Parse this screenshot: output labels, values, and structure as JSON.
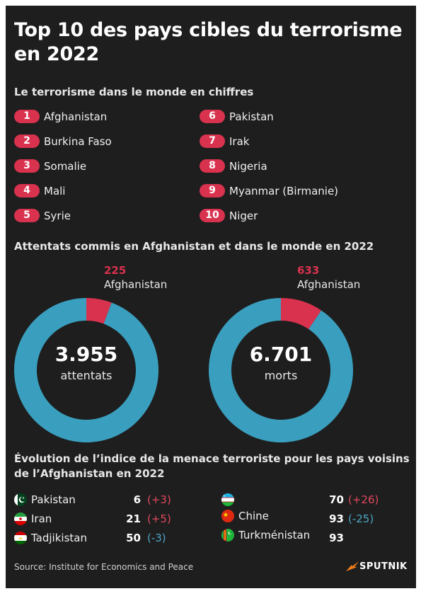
{
  "title": "Top 10 des pays cibles du terrorisme en 2022",
  "section1": "Le terrorisme dans le monde en chiffres",
  "ranking": [
    {
      "rank": "1",
      "country": "Afghanistan"
    },
    {
      "rank": "2",
      "country": "Burkina Faso"
    },
    {
      "rank": "3",
      "country": "Somalie"
    },
    {
      "rank": "4",
      "country": "Mali"
    },
    {
      "rank": "5",
      "country": "Syrie"
    },
    {
      "rank": "6",
      "country": "Pakistan"
    },
    {
      "rank": "7",
      "country": "Irak"
    },
    {
      "rank": "8",
      "country": "Nigeria"
    },
    {
      "rank": "9",
      "country": "Myanmar (Birmanie)"
    },
    {
      "rank": "10",
      "country": "Niger"
    }
  ],
  "section2": "Attentats commis en Afghanistan et dans le monde en 2022",
  "chart_data": [
    {
      "type": "pie",
      "categories": [
        "Afghanistan",
        ""
      ],
      "values": [
        225,
        3730
      ],
      "highlight_label": "225",
      "highlight_name": "Afghanistan",
      "total_label": "3.955",
      "total_unit": "attentats",
      "colors": [
        "#d9324e",
        "#3a9fbf"
      ]
    },
    {
      "type": "pie",
      "categories": [
        "Afghanistan",
        ""
      ],
      "values": [
        633,
        6068
      ],
      "highlight_label": "633",
      "highlight_name": "Afghanistan",
      "total_label": "6.701",
      "total_unit": "morts",
      "colors": [
        "#d9324e",
        "#3a9fbf"
      ]
    }
  ],
  "section3_line1": "Évolution de l’indice de la menace terroriste pour les pays voisins",
  "section3_line2": "de l’Afghanistan en 2022",
  "neighbors": [
    {
      "country": "Pakistan",
      "value": "6",
      "change": "(+3)",
      "trend": "up",
      "flag": "pakistan-flag-icon"
    },
    {
      "country": "Iran",
      "value": "21",
      "change": "(+5)",
      "trend": "up",
      "flag": "iran-flag-icon"
    },
    {
      "country": "Tadjikistan",
      "value": "50",
      "change": "(-3)",
      "trend": "down",
      "flag": "tajikistan-flag-icon"
    },
    {
      "country": "",
      "value": "70",
      "change": "(+26)",
      "trend": "up",
      "flag": "uzbekistan-flag-icon"
    },
    {
      "country": "Chine",
      "value": "93",
      "change": "(-25)",
      "trend": "down",
      "flag": "china-flag-icon"
    },
    {
      "country": "Turkménistan",
      "value": "93",
      "change": "",
      "trend": "none",
      "flag": "turkmenistan-flag-icon"
    }
  ],
  "source": "Source: Institute for Economics and Peace",
  "logo": "SPUTNIK",
  "colors": {
    "background": "#1e1e1e",
    "accent": "#d9324e",
    "ring": "#3a9fbf",
    "decrease": "#4da6c4"
  }
}
